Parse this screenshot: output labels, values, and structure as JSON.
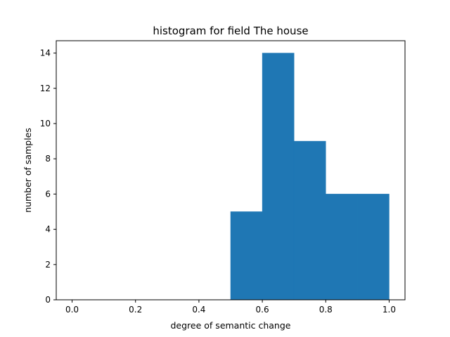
{
  "chart_data": {
    "type": "bar",
    "title": "histogram for field The house",
    "xlabel": "degree of semantic change",
    "ylabel": "number of samples",
    "xlim": [
      -0.05,
      1.05
    ],
    "ylim": [
      0,
      14.7
    ],
    "xticks": [
      0.0,
      0.2,
      0.4,
      0.6,
      0.8,
      1.0
    ],
    "xtick_labels": [
      "0.0",
      "0.2",
      "0.4",
      "0.6",
      "0.8",
      "1.0"
    ],
    "yticks": [
      0,
      2,
      4,
      6,
      8,
      10,
      12,
      14
    ],
    "ytick_labels": [
      "0",
      "2",
      "4",
      "6",
      "8",
      "10",
      "12",
      "14"
    ],
    "bins": [
      {
        "start": 0.0,
        "end": 0.1,
        "count": 0
      },
      {
        "start": 0.1,
        "end": 0.2,
        "count": 0
      },
      {
        "start": 0.2,
        "end": 0.3,
        "count": 0
      },
      {
        "start": 0.3,
        "end": 0.4,
        "count": 0
      },
      {
        "start": 0.4,
        "end": 0.5,
        "count": 0
      },
      {
        "start": 0.5,
        "end": 0.6,
        "count": 5
      },
      {
        "start": 0.6,
        "end": 0.7,
        "count": 14
      },
      {
        "start": 0.7,
        "end": 0.8,
        "count": 9
      },
      {
        "start": 0.8,
        "end": 0.9,
        "count": 6
      },
      {
        "start": 0.9,
        "end": 1.0,
        "count": 6
      }
    ],
    "bar_color": "#1f77b4",
    "grid": false,
    "legend": "none"
  }
}
